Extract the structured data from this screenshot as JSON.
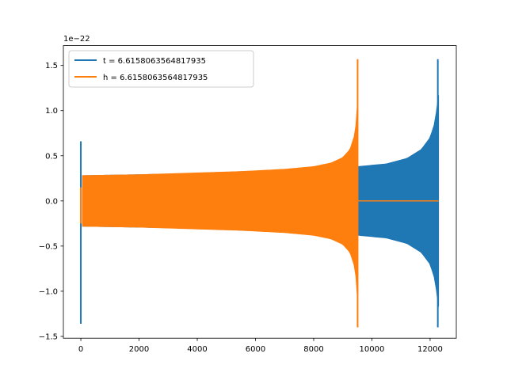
{
  "chart_data": {
    "type": "line",
    "title": "",
    "xlabel": "",
    "ylabel": "",
    "y_scale_label": "1e−22",
    "xlim": [
      -600,
      12900
    ],
    "ylim": [
      -1.52,
      1.72
    ],
    "x_ticks": [
      0,
      2000,
      4000,
      6000,
      8000,
      10000,
      12000
    ],
    "x_tick_labels": [
      "0",
      "2000",
      "4000",
      "6000",
      "8000",
      "10000",
      "12000"
    ],
    "y_ticks": [
      -1.5,
      -1.0,
      -0.5,
      0.0,
      0.5,
      1.0,
      1.5
    ],
    "y_tick_labels": [
      "−1.5",
      "−1.0",
      "−0.5",
      "0.0",
      "0.5",
      "1.0",
      "1.5"
    ],
    "grid": false,
    "legend_position": "top-left",
    "series": [
      {
        "name": "t = 6.6158063564817935",
        "color": "#1f77b4",
        "x_range": [
          0,
          12290
        ],
        "start_spike": {
          "x": 0,
          "ymax": 0.66,
          "ymin": -1.36
        },
        "envelope": [
          [
            60,
            0.28
          ],
          [
            2000,
            0.29
          ],
          [
            4000,
            0.305
          ],
          [
            6000,
            0.33
          ],
          [
            8000,
            0.36
          ],
          [
            9530,
            0.38
          ],
          [
            10500,
            0.41
          ],
          [
            11200,
            0.47
          ],
          [
            11700,
            0.57
          ],
          [
            12000,
            0.7
          ],
          [
            12150,
            0.85
          ],
          [
            12250,
            1.05
          ],
          [
            12290,
            1.17
          ]
        ],
        "end_peak": {
          "x": 12265,
          "ymax": 1.57,
          "ymin": -1.4
        }
      },
      {
        "name": "h = 6.6158063564817935",
        "color": "#ff7f0e",
        "x_range": [
          0,
          12290
        ],
        "start_spike": {
          "x": 0,
          "ymax": 0.15,
          "ymin": -0.25
        },
        "envelope": [
          [
            60,
            0.28
          ],
          [
            2000,
            0.29
          ],
          [
            4000,
            0.31
          ],
          [
            5500,
            0.325
          ],
          [
            7000,
            0.35
          ],
          [
            8000,
            0.38
          ],
          [
            8600,
            0.42
          ],
          [
            9000,
            0.48
          ],
          [
            9250,
            0.57
          ],
          [
            9400,
            0.72
          ],
          [
            9480,
            0.9
          ],
          [
            9510,
            1.1
          ]
        ],
        "end_peak": {
          "x": 9510,
          "ymax": 1.57,
          "ymin": -1.4
        },
        "flat_after": {
          "x_from": 9530,
          "x_to": 12290,
          "y": 0.0
        }
      }
    ]
  }
}
